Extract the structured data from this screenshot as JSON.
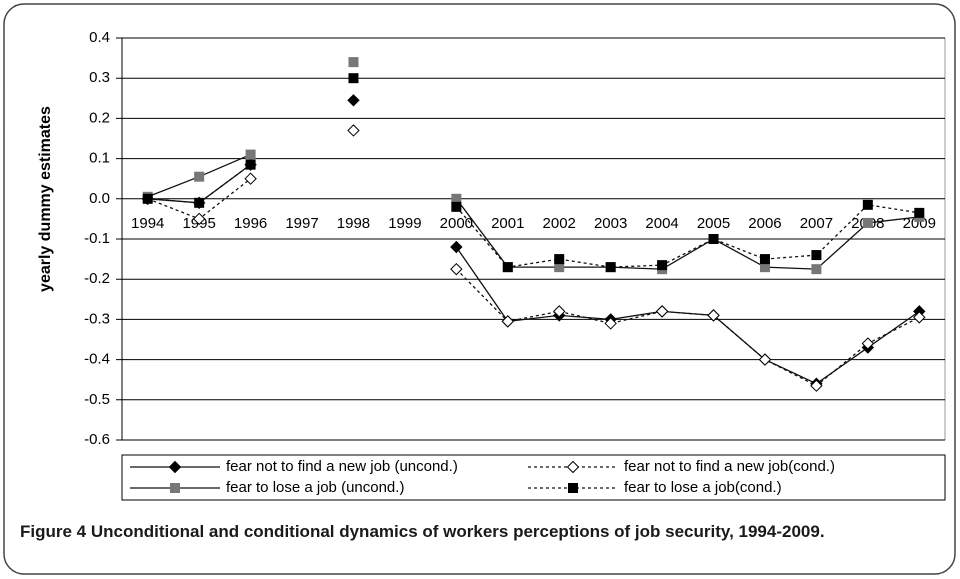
{
  "chart_data": {
    "type": "line",
    "y_label": "yearly dummy estimates",
    "caption": "Figure 4 Unconditional and conditional dynamics of workers perceptions of job security, 1994-2009.",
    "categories": [
      "1994",
      "1995",
      "1996",
      "1997",
      "1998",
      "1999",
      "2000",
      "2001",
      "2002",
      "2003",
      "2004",
      "2005",
      "2006",
      "2007",
      "2008",
      "2009"
    ],
    "series": [
      {
        "name": "fear not to find a new job (uncond.)",
        "color": "#000000",
        "marker": "diamond",
        "dashed": false,
        "values": [
          0.0,
          -0.01,
          0.085,
          null,
          0.245,
          null,
          -0.12,
          -0.305,
          -0.29,
          -0.3,
          -0.28,
          -0.29,
          -0.4,
          -0.46,
          -0.37,
          -0.28
        ]
      },
      {
        "name": "fear not to find a new job(cond.)",
        "color": "#ffffff",
        "marker": "diamond",
        "dashed": true,
        "values": [
          0.0,
          -0.05,
          0.05,
          null,
          0.17,
          null,
          -0.175,
          -0.305,
          -0.28,
          -0.31,
          -0.28,
          -0.29,
          -0.4,
          -0.465,
          -0.36,
          -0.295
        ]
      },
      {
        "name": "fear to lose a job (uncond.)",
        "color": "#777777",
        "marker": "square",
        "dashed": false,
        "values": [
          0.005,
          0.055,
          0.11,
          null,
          0.34,
          null,
          0.0,
          -0.17,
          -0.17,
          -0.17,
          -0.175,
          -0.1,
          -0.17,
          -0.175,
          -0.06,
          -0.045
        ]
      },
      {
        "name": "fear to lose a job(cond.)",
        "color": "#000000",
        "marker": "square",
        "dashed": true,
        "values": [
          0.0,
          -0.01,
          0.085,
          null,
          0.3,
          null,
          -0.02,
          -0.17,
          -0.15,
          -0.17,
          -0.165,
          -0.1,
          -0.15,
          -0.14,
          -0.015,
          -0.035
        ]
      }
    ],
    "ylim": [
      -0.6,
      0.4
    ],
    "yticks": [
      -0.6,
      -0.5,
      -0.4,
      -0.3,
      -0.2,
      -0.1,
      {
        "value": 0,
        "label": "0.0"
      },
      0.1,
      0.2,
      0.3,
      0.4
    ],
    "grid": true,
    "legend": "bottom"
  }
}
